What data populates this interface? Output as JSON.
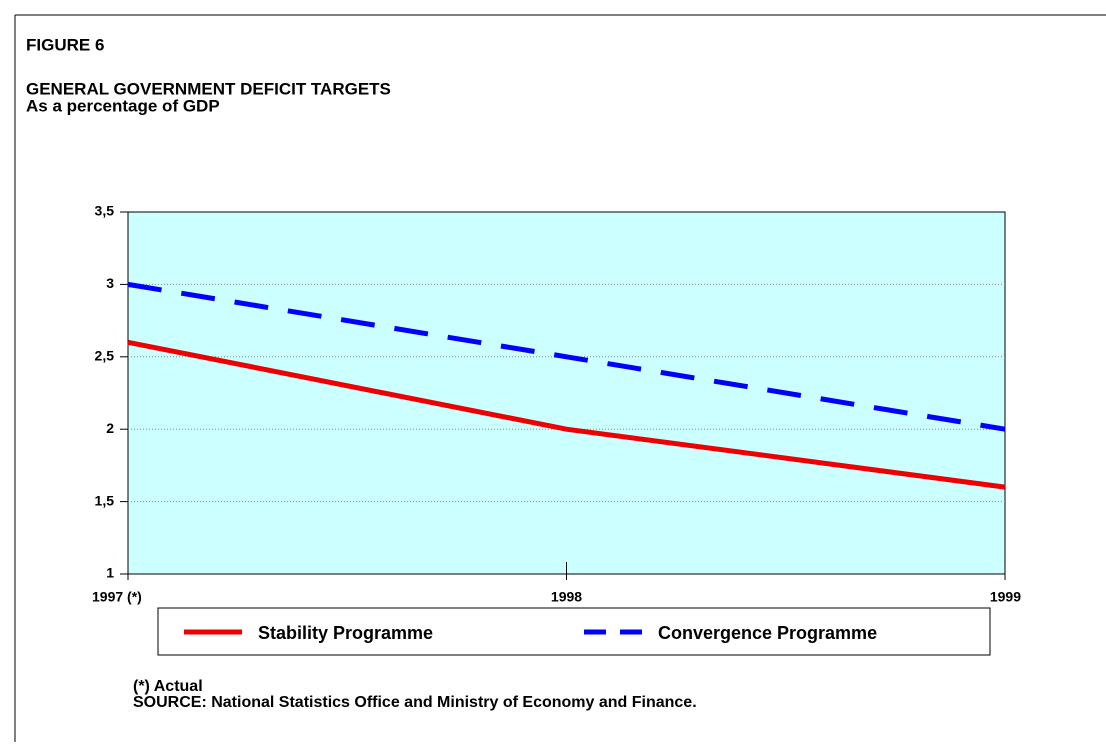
{
  "chart_data": {
    "type": "line",
    "label": "FIGURE 6",
    "title": "GENERAL GOVERNMENT DEFICIT TARGETS",
    "subtitle": "As a percentage of GDP",
    "categories": [
      "1997 (*)",
      "1998",
      "1999"
    ],
    "series": [
      {
        "name": "Stability Programme",
        "color": "#ee0000",
        "style": "solid",
        "values": [
          2.6,
          2.0,
          1.6
        ]
      },
      {
        "name": "Convergence Programme",
        "color": "#0000ff",
        "style": "dashed",
        "values": [
          3.0,
          2.5,
          2.0
        ]
      }
    ],
    "ylim": [
      1,
      3.5
    ],
    "yticks": [
      1,
      {
        "value": 1.5,
        "label": "1,5"
      },
      2,
      {
        "value": 2.5,
        "label": "2,5"
      },
      3,
      {
        "value": 3.5,
        "label": "3,5"
      }
    ],
    "grid": true,
    "plot_background": "#ccffff",
    "notes": [
      "(*) Actual",
      "SOURCE: National Statistics Office and Ministry of Economy and Finance."
    ]
  }
}
